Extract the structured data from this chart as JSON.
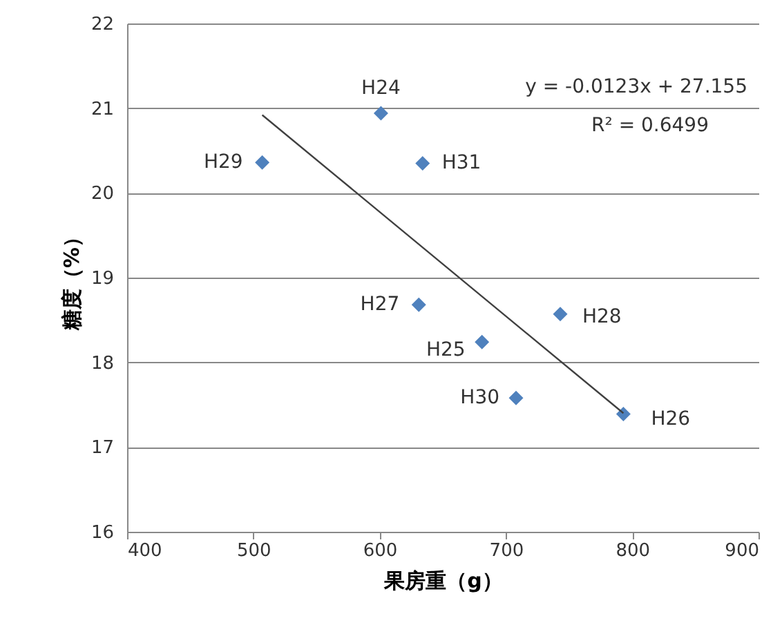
{
  "chart_data": {
    "type": "scatter",
    "xlabel": "果房重（g）",
    "ylabel": "糖度（%）",
    "xlim": [
      400,
      900
    ],
    "xticks": [
      400,
      500,
      600,
      700,
      800,
      900
    ],
    "ylim": [
      16,
      22
    ],
    "yticks": [
      16,
      17,
      18,
      19,
      20,
      21,
      22
    ],
    "grid": "y",
    "series": [
      {
        "marker": "diamond",
        "color": "#4f81bd",
        "x": [
          507,
          601,
          634,
          631,
          681,
          743,
          708,
          793
        ],
        "values": [
          20.36,
          20.94,
          20.35,
          18.68,
          18.24,
          18.57,
          17.58,
          17.39
        ]
      },
      {
        "type": "line",
        "color": "#404040",
        "x": [
          507,
          793
        ],
        "values": [
          20.92,
          17.4
        ]
      }
    ],
    "annotations": [
      {
        "text": "H29",
        "x": 507,
        "y": 20.36
      },
      {
        "text": "H24",
        "x": 601,
        "y": 20.94
      },
      {
        "text": "H31",
        "x": 634,
        "y": 20.35
      },
      {
        "text": "H27",
        "x": 631,
        "y": 18.68
      },
      {
        "text": "H25",
        "x": 681,
        "y": 18.24
      },
      {
        "text": "H28",
        "x": 743,
        "y": 18.57
      },
      {
        "text": "H30",
        "x": 708,
        "y": 17.58
      },
      {
        "text": "H26",
        "x": 793,
        "y": 17.39
      },
      "y = -0.0123x + 27.155",
      "R² = 0.6499"
    ]
  }
}
